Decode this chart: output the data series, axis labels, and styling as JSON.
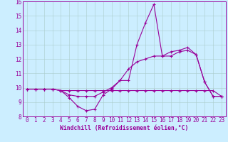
{
  "xlabel": "Windchill (Refroidissement éolien,°C)",
  "bg_color": "#cceeff",
  "line_color": "#990099",
  "ylim": [
    8,
    16
  ],
  "xlim": [
    -0.5,
    23.5
  ],
  "yticks": [
    8,
    9,
    10,
    11,
    12,
    13,
    14,
    15,
    16
  ],
  "xticks": [
    0,
    1,
    2,
    3,
    4,
    5,
    6,
    7,
    8,
    9,
    10,
    11,
    12,
    13,
    14,
    15,
    16,
    17,
    18,
    19,
    20,
    21,
    22,
    23
  ],
  "series1_x": [
    0,
    1,
    2,
    3,
    4,
    5,
    6,
    7,
    8,
    9,
    10,
    11,
    12,
    13,
    14,
    15,
    16,
    17,
    18,
    19,
    20,
    21,
    22,
    23
  ],
  "series1_y": [
    9.9,
    9.9,
    9.9,
    9.9,
    9.8,
    9.3,
    8.7,
    8.4,
    8.5,
    9.5,
    9.9,
    10.5,
    10.5,
    13.0,
    14.5,
    15.8,
    12.2,
    12.2,
    12.5,
    12.6,
    12.3,
    10.4,
    9.4,
    9.4
  ],
  "series2_x": [
    0,
    1,
    2,
    3,
    4,
    5,
    6,
    7,
    8,
    9,
    10,
    11,
    12,
    13,
    14,
    15,
    16,
    17,
    18,
    19,
    20,
    21,
    22,
    23
  ],
  "series2_y": [
    9.9,
    9.9,
    9.9,
    9.9,
    9.8,
    9.5,
    9.4,
    9.4,
    9.4,
    9.7,
    10.0,
    10.5,
    11.3,
    11.8,
    12.0,
    12.2,
    12.2,
    12.5,
    12.6,
    12.8,
    12.3,
    10.4,
    9.4,
    9.4
  ],
  "series3_x": [
    0,
    1,
    2,
    3,
    4,
    5,
    6,
    7,
    8,
    9,
    10,
    11,
    12,
    13,
    14,
    15,
    16,
    17,
    18,
    19,
    20,
    21,
    22,
    23
  ],
  "series3_y": [
    9.9,
    9.9,
    9.9,
    9.9,
    9.8,
    9.8,
    9.8,
    9.8,
    9.8,
    9.8,
    9.8,
    9.8,
    9.8,
    9.8,
    9.8,
    9.8,
    9.8,
    9.8,
    9.8,
    9.8,
    9.8,
    9.8,
    9.8,
    9.4
  ],
  "tick_fontsize": 5.5,
  "xlabel_fontsize": 5.8,
  "linewidth": 0.8,
  "markersize": 3.0
}
